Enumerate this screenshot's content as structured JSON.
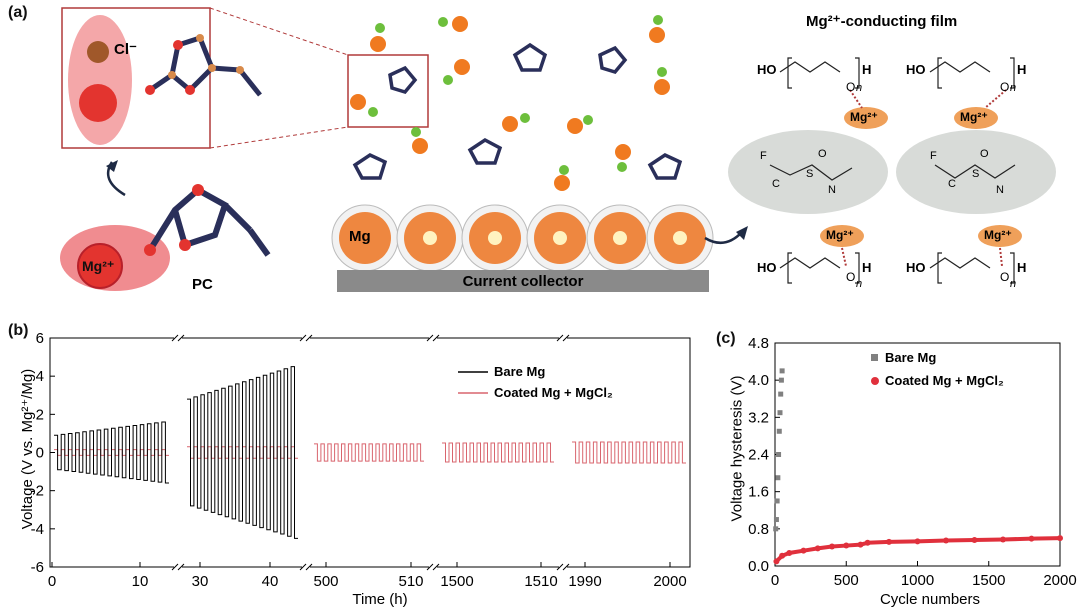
{
  "panel_a": {
    "label": "(a)",
    "chloride": "Cl⁻",
    "mg_ion": "Mg²⁺",
    "pc": "PC",
    "mg_metal": "Mg",
    "current_collector": "Current collector",
    "film_title": "Mg²⁺-conducting film",
    "peg_ho": "HO",
    "peg_h": "H",
    "peg_n": "n",
    "peg_o": "O",
    "tfsi_atoms": {
      "F": "F",
      "C": "C",
      "S": "S",
      "O": "O",
      "N": "N"
    },
    "colors": {
      "mg_ion": "#e3342f",
      "cl": "#6dbf3c",
      "cl_big": "#9a5b2a",
      "orange": "#f07a20",
      "mol_bond": "#2a2f5a",
      "bubble": "#f08c90",
      "film_oval": "#d8dbd8"
    }
  },
  "panel_b": {
    "label": "(b)",
    "ylabel": "Voltage (V vs. Mg²⁺/Mg)",
    "xlabel": "Time (h)",
    "yticks": [
      "6",
      "4",
      "2",
      "0",
      "-2",
      "-4",
      "-6"
    ],
    "xticks": [
      "0",
      "10",
      "30",
      "40",
      "500",
      "510",
      "1500",
      "1510",
      "1990",
      "2000"
    ],
    "legend": [
      "Bare Mg",
      "Coated Mg + MgCl₂"
    ]
  },
  "panel_c": {
    "label": "(c)",
    "ylabel": "Voltage hysteresis (V)",
    "xlabel": "Cycle numbers",
    "yticks": [
      "4.8",
      "4.0",
      "3.2",
      "2.4",
      "1.6",
      "0.8",
      "0.0"
    ],
    "xticks": [
      "0",
      "500",
      "1000",
      "1500",
      "2000"
    ],
    "legend": [
      "Bare Mg",
      "Coated Mg + MgCl₂"
    ]
  },
  "chart_data": [
    {
      "type": "line",
      "title": "",
      "xlabel": "Time (h)",
      "ylabel": "Voltage (V vs. Mg²⁺/Mg)",
      "ylim": [
        -6,
        6
      ],
      "x_segments": [
        [
          0,
          15
        ],
        [
          25,
          45
        ],
        [
          497,
          513
        ],
        [
          1497,
          1513
        ],
        [
          1987,
          2000
        ]
      ],
      "series": [
        {
          "name": "Bare Mg",
          "color": "#000000",
          "segment_amplitudes": [
            [
              0.9,
              1.6
            ],
            [
              2.8,
              4.5
            ]
          ]
        },
        {
          "name": "Coated Mg + MgCl₂",
          "color": "#d9656e",
          "segment_amplitudes": [
            [
              0.15,
              0.15
            ],
            [
              0.3,
              0.3
            ],
            [
              0.45,
              0.45
            ],
            [
              0.5,
              0.5
            ],
            [
              0.55,
              0.55
            ]
          ]
        }
      ],
      "legend_position": "top-right"
    },
    {
      "type": "scatter",
      "title": "",
      "xlabel": "Cycle numbers",
      "ylabel": "Voltage hysteresis (V)",
      "xlim": [
        0,
        2000
      ],
      "ylim": [
        0,
        4.8
      ],
      "series": [
        {
          "name": "Bare Mg",
          "color": "#808080",
          "x": [
            5,
            10,
            15,
            20,
            25,
            30,
            35,
            40,
            45,
            50
          ],
          "y": [
            0.8,
            1.0,
            1.4,
            1.9,
            2.4,
            2.9,
            3.3,
            3.7,
            4.0,
            4.2
          ]
        },
        {
          "name": "Coated Mg + MgCl₂",
          "color": "#e0303c",
          "x": [
            10,
            50,
            100,
            200,
            300,
            400,
            500,
            600,
            650,
            800,
            1000,
            1200,
            1400,
            1600,
            1800,
            2000
          ],
          "y": [
            0.1,
            0.22,
            0.28,
            0.33,
            0.38,
            0.42,
            0.44,
            0.46,
            0.5,
            0.52,
            0.53,
            0.55,
            0.56,
            0.57,
            0.59,
            0.6
          ]
        }
      ],
      "legend_position": "top-right"
    }
  ]
}
